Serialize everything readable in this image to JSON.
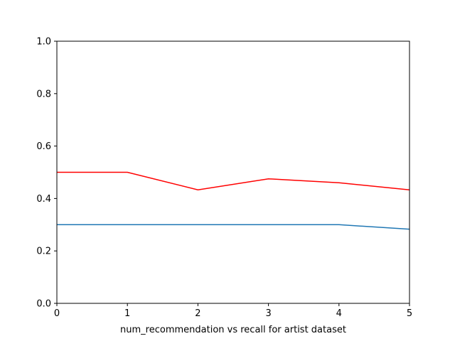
{
  "chart_data": {
    "type": "line",
    "title": "",
    "xlabel": "num_recommendation vs recall for artist dataset",
    "ylabel": "",
    "xlim": [
      0,
      5
    ],
    "ylim": [
      0.0,
      1.0
    ],
    "x_ticks": [
      "0",
      "1",
      "2",
      "3",
      "4",
      "5"
    ],
    "y_ticks": [
      "0.0",
      "0.2",
      "0.4",
      "0.6",
      "0.8",
      "1.0"
    ],
    "grid": false,
    "legend": "none",
    "x": [
      0,
      1,
      2,
      3,
      4,
      5
    ],
    "series": [
      {
        "color": "#ff0000",
        "values": [
          0.5,
          0.5,
          0.433,
          0.475,
          0.46,
          0.433
        ]
      },
      {
        "color": "#1f77b4",
        "values": [
          0.3,
          0.3,
          0.3,
          0.3,
          0.3,
          0.283
        ]
      }
    ]
  }
}
